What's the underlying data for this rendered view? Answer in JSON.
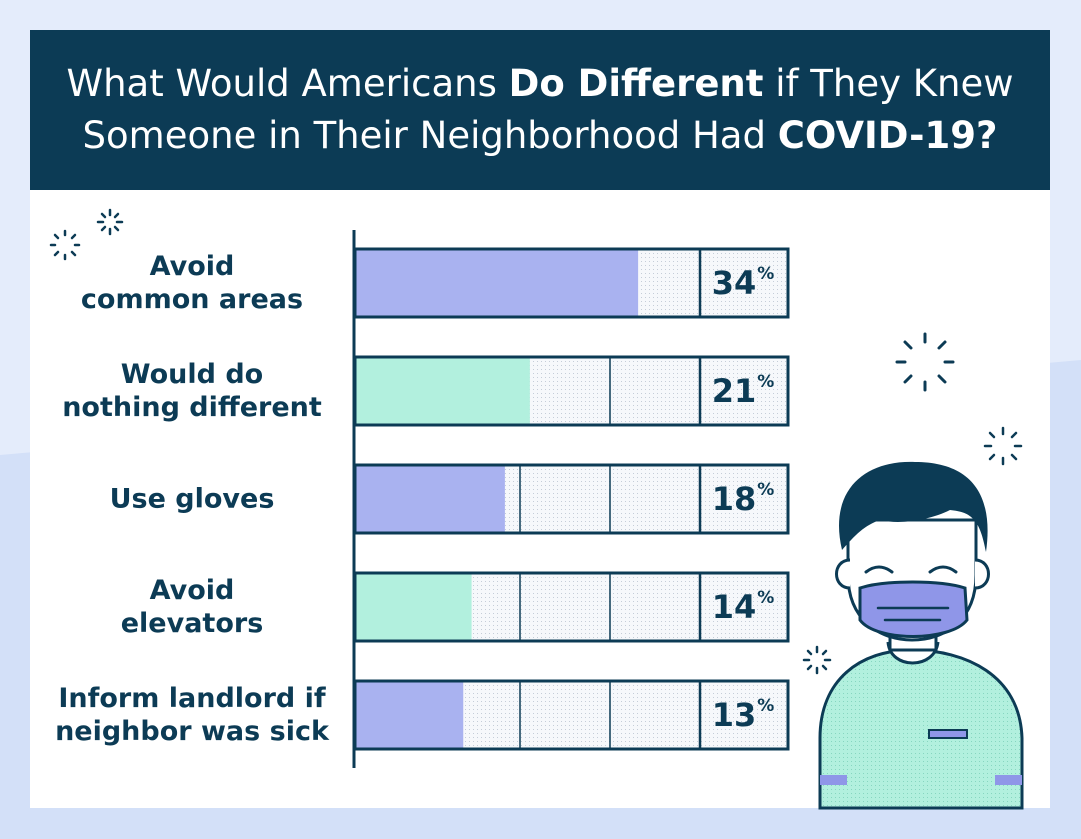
{
  "header": {
    "line1": {
      "pre": "What Would Americans ",
      "bold": "Do Different",
      "post": " if They Knew"
    },
    "line2": {
      "pre": "Someone in Their Neighborhood Had ",
      "bold": "COVID-19?"
    }
  },
  "colors": {
    "background": "#e4ecfb",
    "header": "#0c3b55",
    "text": "#0c3b55",
    "purple": "#a9b2f0",
    "mint": "#b2f0de",
    "bar_outline": "#0c3b55",
    "mask": "#8f96e8",
    "shirt": "#b2f0de"
  },
  "chart_data": {
    "type": "bar",
    "orientation": "horizontal",
    "title": "What Would Americans Do Different if They Knew Someone in Their Neighborhood Had COVID-19?",
    "categories": [
      [
        "Avoid",
        "common areas"
      ],
      [
        "Would do",
        "nothing different"
      ],
      [
        "Use gloves"
      ],
      [
        "Avoid",
        "elevators"
      ],
      [
        "Inform landlord if",
        "neighbor was sick"
      ]
    ],
    "values": [
      34,
      21,
      18,
      14,
      13
    ],
    "value_labels": [
      "34",
      "21",
      "18",
      "14",
      "13"
    ],
    "unit": "%",
    "bar_colors": [
      "#a9b2f0",
      "#b2f0de",
      "#a9b2f0",
      "#b2f0de",
      "#a9b2f0"
    ],
    "xlim": [
      0,
      52
    ],
    "xlabel": "",
    "ylabel": "",
    "grid": true
  }
}
